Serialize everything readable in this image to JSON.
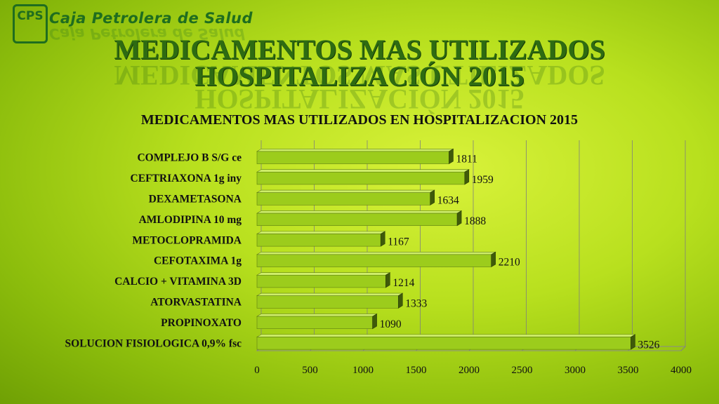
{
  "header": {
    "org_name": "Caja Petrolera de Salud",
    "logo_text": "CPS",
    "title_line1": "MEDICAMENTOS MAS UTILIZADOS",
    "title_line2": "HOSPITALIZACIÓN 2015"
  },
  "chart_data": {
    "type": "bar",
    "orientation": "horizontal",
    "title": "MEDICAMENTOS MAS UTILIZADOS EN HOSPITALIZACION 2015",
    "categories": [
      "COMPLEJO B S/G ce",
      "CEFTRIAXONA 1g iny",
      "DEXAMETASONA",
      "AMLODIPINA 10 mg",
      "METOCLOPRAMIDA",
      "CEFOTAXIMA 1g",
      "CALCIO + VITAMINA 3D",
      "ATORVASTATINA",
      "PROPINOXATO",
      "SOLUCION FISIOLOGICA 0,9% fsc"
    ],
    "values": [
      1811,
      1959,
      1634,
      1888,
      1167,
      2210,
      1214,
      1333,
      1090,
      3526
    ],
    "xlim": [
      0,
      4000
    ],
    "xticks": [
      0,
      500,
      1000,
      1500,
      2000,
      2500,
      3000,
      3500,
      4000
    ],
    "grid": true,
    "bar_color": "#9ccc1c",
    "data_labels": true
  }
}
